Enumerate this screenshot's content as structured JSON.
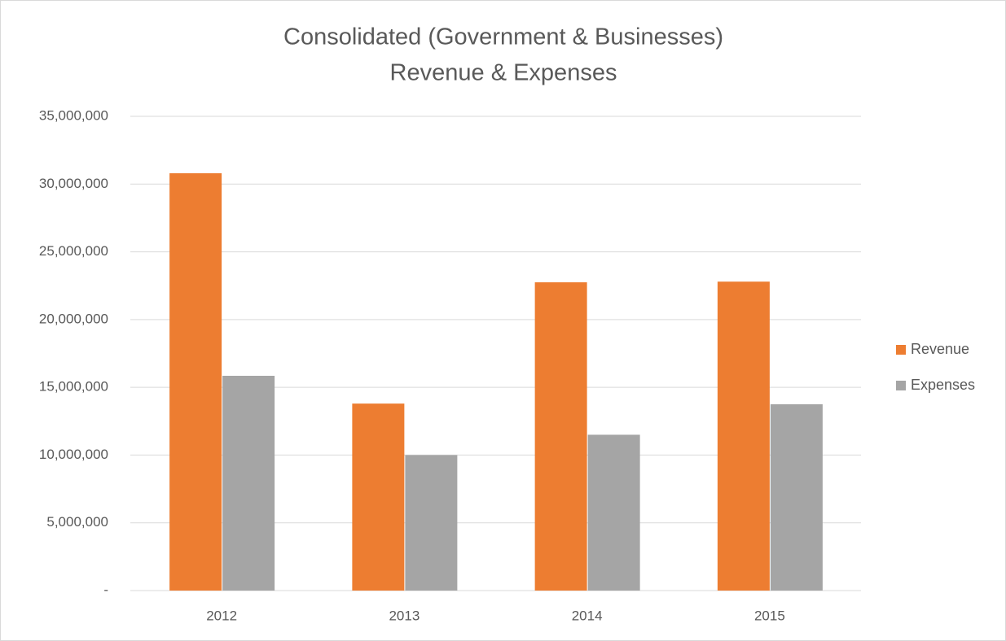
{
  "chart_data": {
    "type": "bar",
    "title": [
      "Consolidated (Government & Businesses)",
      "Revenue & Expenses"
    ],
    "categories": [
      "2012",
      "2013",
      "2014",
      "2015"
    ],
    "series": [
      {
        "name": "Revenue",
        "color": "#ED7D31",
        "values": [
          30800000,
          13800000,
          22750000,
          22800000
        ]
      },
      {
        "name": "Expenses",
        "color": "#A5A5A5",
        "values": [
          15850000,
          10000000,
          11500000,
          13750000
        ]
      }
    ],
    "ylim": [
      0,
      35000000
    ],
    "yticks": [
      {
        "value": 0,
        "label": "-"
      },
      {
        "value": 5000000,
        "label": "5,000,000"
      },
      {
        "value": 10000000,
        "label": "10,000,000"
      },
      {
        "value": 15000000,
        "label": "15,000,000"
      },
      {
        "value": 20000000,
        "label": "20,000,000"
      },
      {
        "value": 25000000,
        "label": "25,000,000"
      },
      {
        "value": 30000000,
        "label": "30,000,000"
      },
      {
        "value": 35000000,
        "label": "35,000,000"
      }
    ],
    "grid": true,
    "legend": "right"
  }
}
